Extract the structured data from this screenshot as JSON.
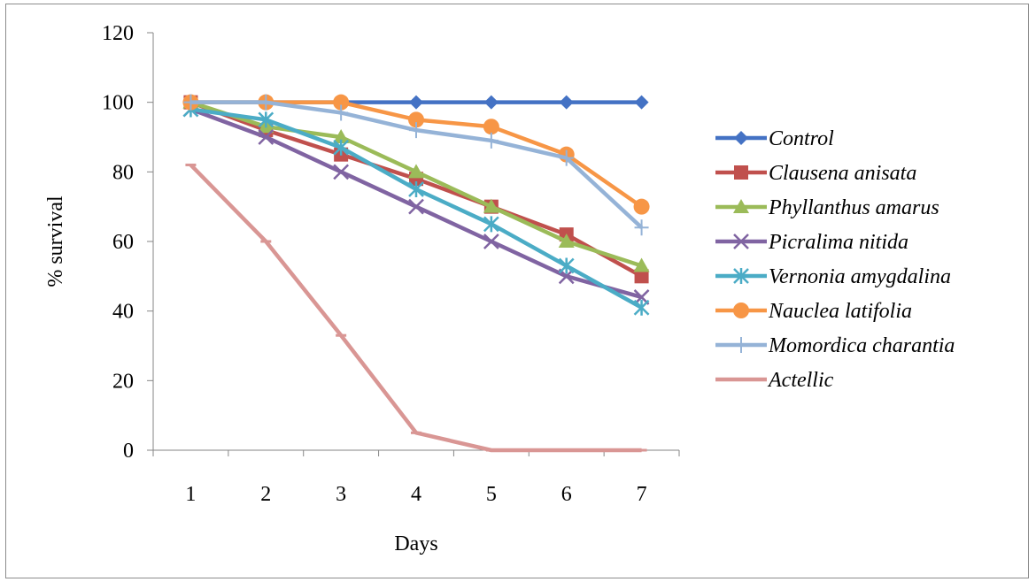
{
  "chart_data": {
    "type": "line",
    "title": "",
    "xlabel": "Days",
    "ylabel": "% survival",
    "x": [
      1,
      2,
      3,
      4,
      5,
      6,
      7
    ],
    "ylim": [
      0,
      120
    ],
    "yticks": [
      0,
      20,
      40,
      60,
      80,
      100,
      120
    ],
    "grid": false,
    "legend_position": "right",
    "series": [
      {
        "name": "Control",
        "color": "#4472c4",
        "marker": "diamond",
        "values": [
          100,
          100,
          100,
          100,
          100,
          100,
          100
        ]
      },
      {
        "name": "Clausena anisata",
        "color": "#c0504d",
        "marker": "square",
        "values": [
          100,
          92,
          85,
          78,
          70,
          62,
          50
        ]
      },
      {
        "name": "Phyllanthus amarus",
        "color": "#9bbb59",
        "marker": "triangle",
        "values": [
          100,
          93,
          90,
          80,
          70,
          60,
          53
        ]
      },
      {
        "name": "Picralima nitida",
        "color": "#8064a2",
        "marker": "x",
        "values": [
          98,
          90,
          80,
          70,
          60,
          50,
          44
        ]
      },
      {
        "name": "Vernonia amygdalina",
        "color": "#4bacc6",
        "marker": "star",
        "values": [
          98,
          95,
          87,
          75,
          65,
          53,
          41
        ]
      },
      {
        "name": "Nauclea latifolia",
        "color": "#f79646",
        "marker": "circle",
        "values": [
          100,
          100,
          100,
          95,
          93,
          85,
          70
        ]
      },
      {
        "name": "Momordica charantia",
        "color": "#95b3d7",
        "marker": "plus",
        "values": [
          100,
          100,
          97,
          92,
          89,
          84,
          64
        ]
      },
      {
        "name": "Actellic",
        "color": "#d99694",
        "marker": "dash",
        "values": [
          82,
          60,
          33,
          5,
          0,
          0,
          0
        ]
      }
    ]
  }
}
